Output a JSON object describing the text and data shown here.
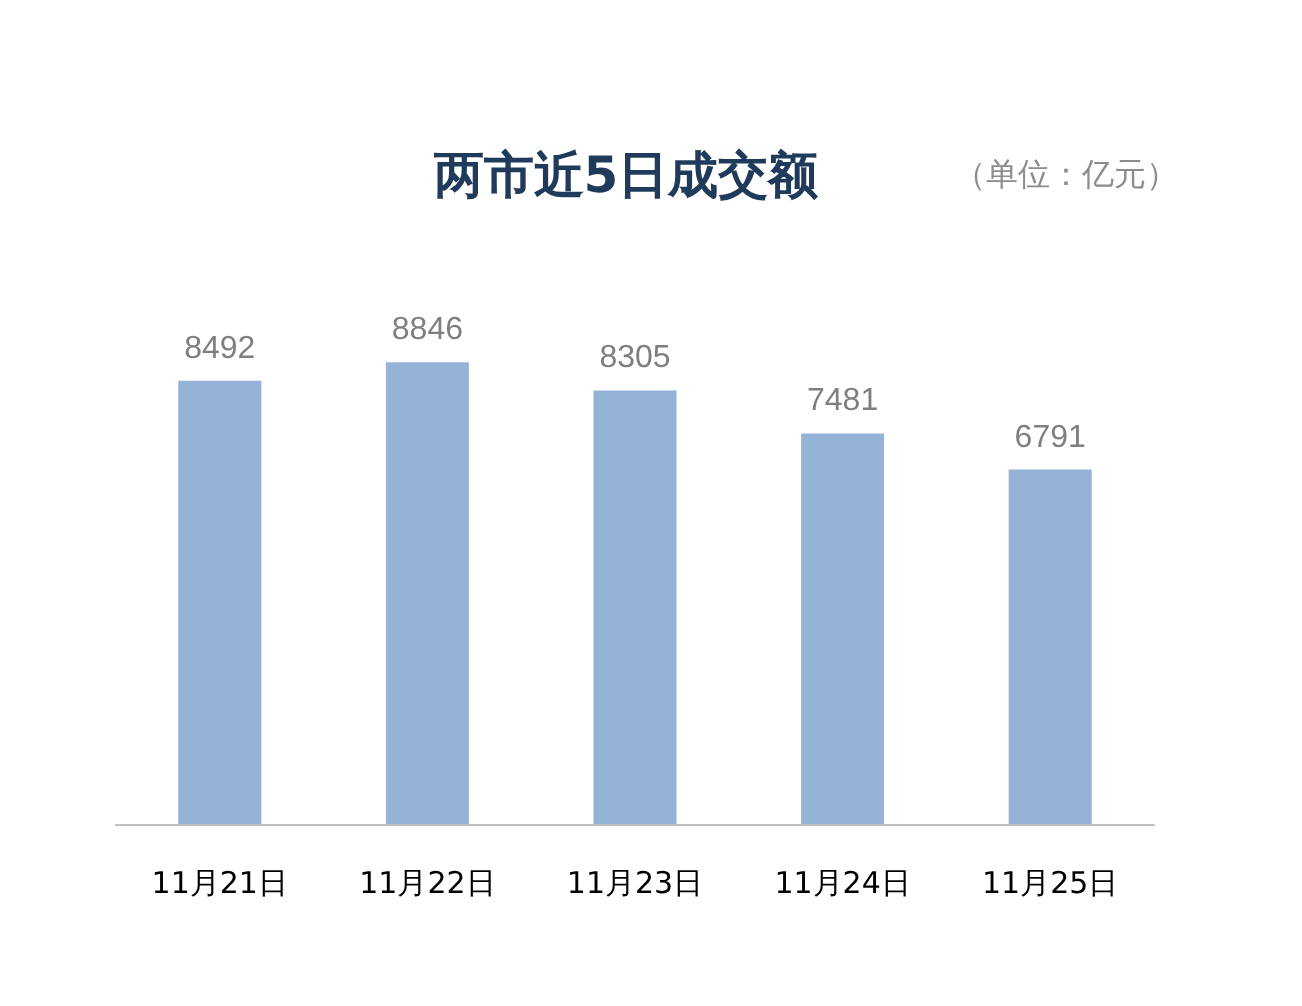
{
  "chart_data": {
    "type": "bar",
    "title": "两市近5日成交额",
    "subtitle": "（单位：亿元）",
    "categories": [
      "11月21日",
      "11月22日",
      "11月23日",
      "11月24日",
      "11月25日"
    ],
    "values": [
      8492,
      8846,
      8305,
      7481,
      6791
    ],
    "color": "#95b3d7",
    "data_labels": true
  }
}
